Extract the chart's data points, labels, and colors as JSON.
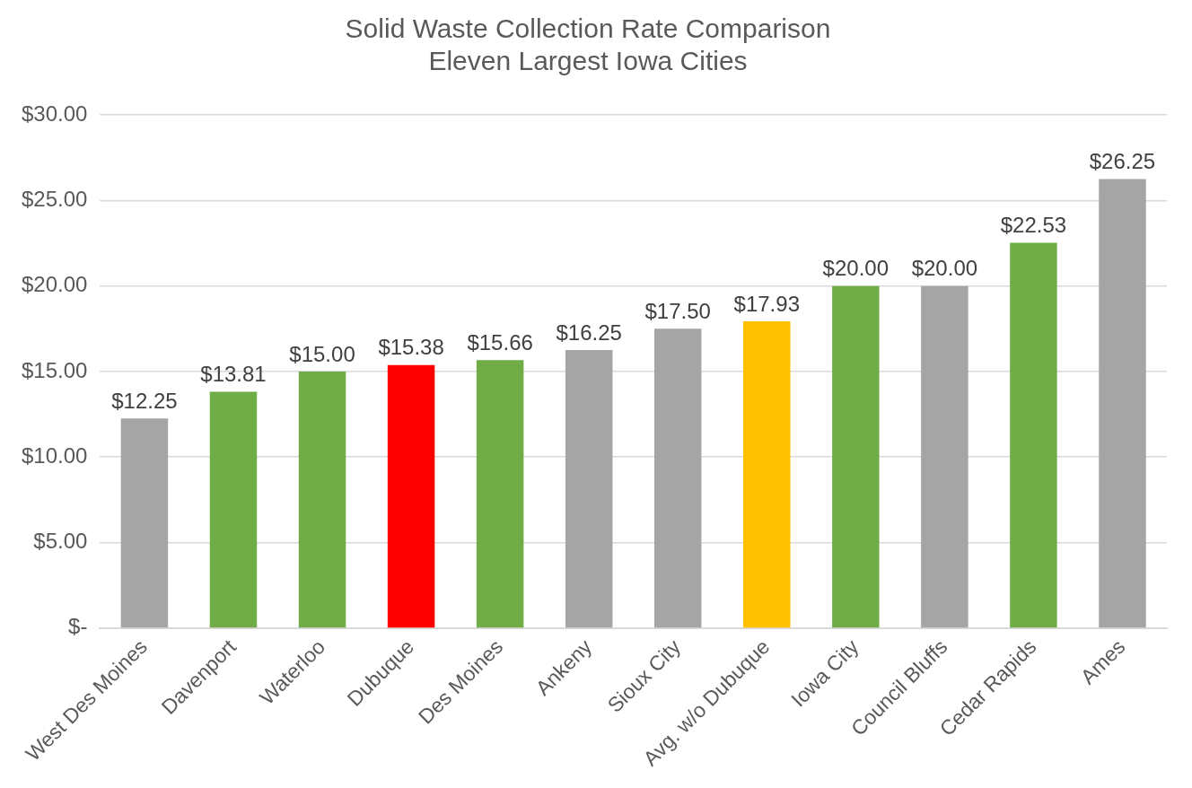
{
  "chart_data": {
    "type": "bar",
    "title": "Solid Waste Collection Rate Comparison",
    "subtitle": "Eleven Largest Iowa Cities",
    "categories": [
      "West Des Moines",
      "Davenport",
      "Waterloo",
      "Dubuque",
      "Des Moines",
      "Ankeny",
      "Sioux City",
      "Avg. w/o Dubuque",
      "Iowa City",
      "Council Bluffs",
      "Cedar Rapids",
      "Ames"
    ],
    "values": [
      12.25,
      13.81,
      15.0,
      15.38,
      15.66,
      16.25,
      17.5,
      17.93,
      20.0,
      20.0,
      22.53,
      26.25
    ],
    "colors": [
      "#a5a5a5",
      "#70ad47",
      "#70ad47",
      "#ff0000",
      "#70ad47",
      "#a5a5a5",
      "#a5a5a5",
      "#ffc000",
      "#70ad47",
      "#a5a5a5",
      "#70ad47",
      "#a5a5a5"
    ],
    "value_labels": [
      "$12.25",
      "$13.81",
      "$15.00",
      "$15.38",
      "$15.66",
      "$16.25",
      "$17.50",
      "$17.93",
      "$20.00",
      "$20.00",
      "$22.53",
      "$26.25"
    ],
    "ylim": [
      0,
      30
    ],
    "yticks": [
      {
        "value": 0,
        "label": "$-"
      },
      {
        "value": 5,
        "label": "$5.00"
      },
      {
        "value": 10,
        "label": "$10.00"
      },
      {
        "value": 15,
        "label": "$15.00"
      },
      {
        "value": 20,
        "label": "$20.00"
      },
      {
        "value": 25,
        "label": "$25.00"
      },
      {
        "value": 30,
        "label": "$30.00"
      }
    ],
    "grid": "y",
    "legend": false
  }
}
